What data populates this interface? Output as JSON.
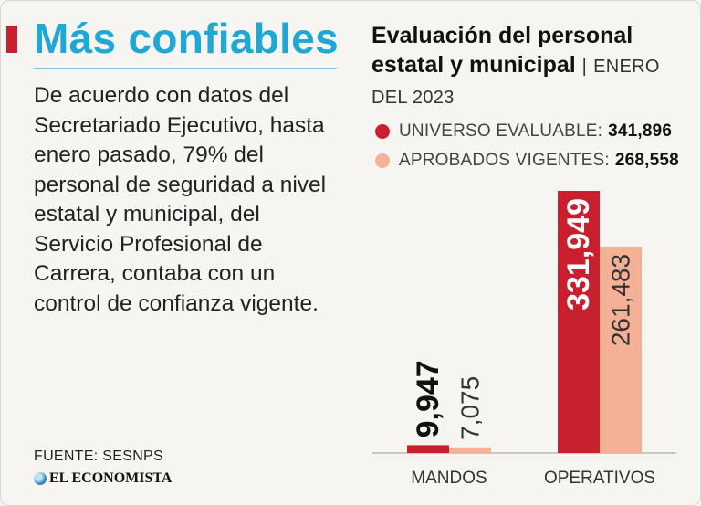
{
  "left_panel": {
    "title": "Más confiables",
    "body": "De acuerdo con datos del Secretariado Ejecutivo, hasta enero pasado, 79% del personal de seguridad a nivel estatal y municipal, del Servicio Profesional de Carrera, contaba con un control de confianza vigente.",
    "source": "FUENTE: SESNPS",
    "brand": "EL ECONOMISTA"
  },
  "chart_header": {
    "title": "Evaluación del personal estatal y municipal",
    "separator": "|",
    "subtitle": "ENERO DEL 2023"
  },
  "legend": [
    {
      "label": "UNIVERSO EVALUABLE:",
      "value": "341,896",
      "color": "#c8202f"
    },
    {
      "label": "APROBADOS VIGENTES:",
      "value": "268,558",
      "color": "#f4b195"
    }
  ],
  "chart_data": {
    "type": "bar",
    "categories": [
      "MANDOS",
      "OPERATIVOS"
    ],
    "series": [
      {
        "name": "UNIVERSO EVALUABLE",
        "values": [
          9947,
          331949
        ],
        "labels": [
          "9,947",
          "331,949"
        ],
        "color": "#c8202f"
      },
      {
        "name": "APROBADOS VIGENTES",
        "values": [
          7075,
          261483
        ],
        "labels": [
          "7,075",
          "261,483"
        ],
        "color": "#f4b195"
      }
    ],
    "title": "Evaluación del personal estatal y municipal",
    "xlabel": "",
    "ylabel": "",
    "grid": false
  }
}
